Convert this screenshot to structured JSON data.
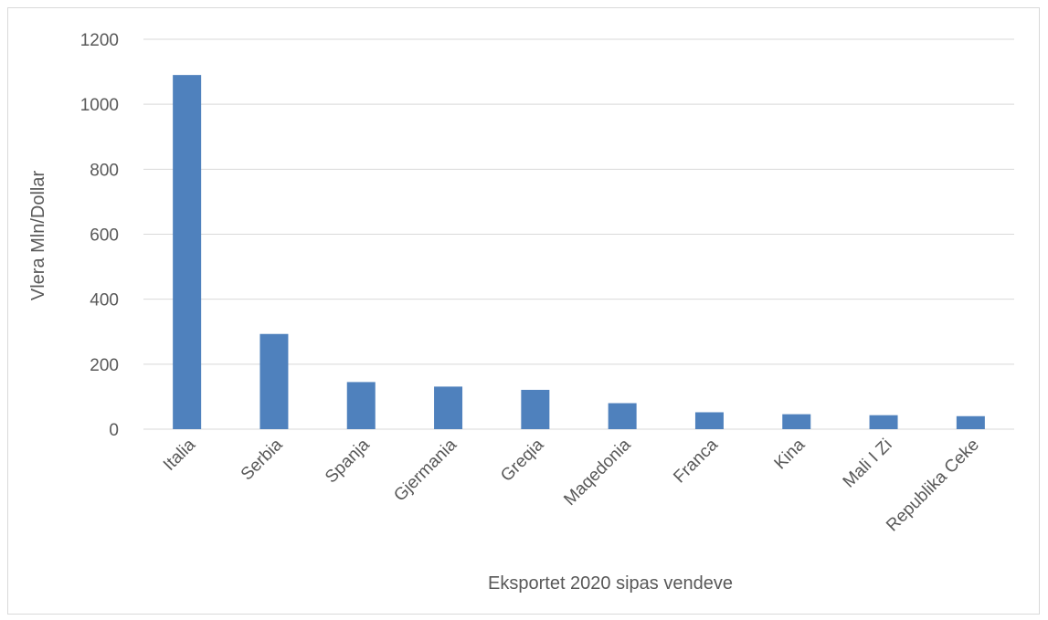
{
  "chart_data": {
    "type": "bar",
    "title": "",
    "xlabel": "Eksportet 2020 sipas vendeve",
    "ylabel": "Vlera Mln/Dollar",
    "categories": [
      "Italia",
      "Serbia",
      "Spanja",
      "Gjermania",
      "Greqia",
      "Maqedonia",
      "Franca",
      "Kina",
      "Mali I Zi",
      "Republika Ceke"
    ],
    "values": [
      1090,
      293,
      145,
      131,
      121,
      80,
      52,
      46,
      43,
      40
    ],
    "ylim": [
      0,
      1200
    ],
    "yticks": [
      0,
      200,
      400,
      600,
      800,
      1000,
      1200
    ],
    "grid": true,
    "legend": "none",
    "bar_color": "#4f81bd",
    "grid_color": "#d9d9d9"
  }
}
